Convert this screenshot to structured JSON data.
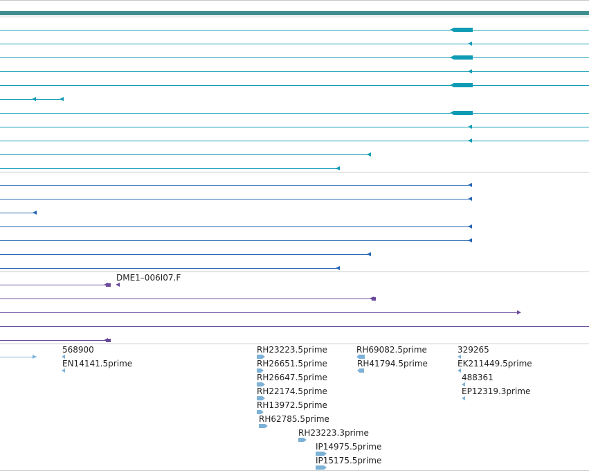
{
  "colors": {
    "gene_track": "#3f8d8f",
    "transcript": "#0f9bb4",
    "protein": "#2565b3",
    "cdna_clone": "#6a4a9a",
    "est": "#7db1d6",
    "divider": "#c8c8c8"
  },
  "tracks": {
    "transcripts": {
      "rows": [
        {
          "ends_at": "right-edge",
          "strand": "minus",
          "cds": true
        },
        {
          "ends_at": "right-edge",
          "strand": "minus",
          "cds": false
        },
        {
          "ends_at": "right-edge",
          "strand": "minus",
          "cds": true
        },
        {
          "ends_at": "right-edge",
          "strand": "minus",
          "cds": false
        },
        {
          "ends_at": "right-edge",
          "strand": "minus",
          "cds": true
        },
        {
          "ends_at": "short",
          "strand": "minus",
          "cds": false
        },
        {
          "ends_at": "right-edge",
          "strand": "minus",
          "cds": true
        },
        {
          "ends_at": "right-edge",
          "strand": "minus",
          "cds": false
        },
        {
          "ends_at": "right-edge",
          "strand": "minus",
          "cds": false
        },
        {
          "ends_at": "mid",
          "strand": "minus",
          "cds": false
        },
        {
          "ends_at": "mid",
          "strand": "minus",
          "cds": false
        }
      ]
    },
    "proteins": {
      "rows": [
        {
          "strand": "minus"
        },
        {
          "strand": "minus"
        },
        {
          "strand": "minus"
        },
        {
          "strand": "minus"
        },
        {
          "strand": "minus"
        },
        {
          "strand": "minus"
        },
        {
          "strand": "minus"
        }
      ]
    },
    "cdna_clones": {
      "label": "DME1–006I07.F",
      "rows": 5
    },
    "ests": {
      "labels": [
        "568900",
        "EN14141.5prime",
        "RH23223.5prime",
        "RH26651.5prime",
        "RH26647.5prime",
        "RH22174.5prime",
        "RH13972.5prime",
        "RH62785.5prime",
        "RH23223.3prime",
        "IP14975.5prime",
        "IP15175.5prime",
        "RH69082.5prime",
        "RH41794.5prime",
        "329265",
        "EK211449.5prime",
        "488361",
        "EP12319.3prime"
      ]
    }
  }
}
